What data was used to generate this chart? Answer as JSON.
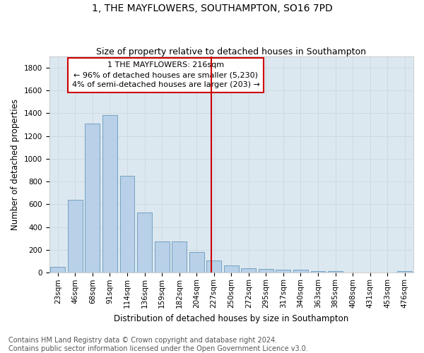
{
  "title": "1, THE MAYFLOWERS, SOUTHAMPTON, SO16 7PD",
  "subtitle": "Size of property relative to detached houses in Southampton",
  "xlabel": "Distribution of detached houses by size in Southampton",
  "ylabel": "Number of detached properties",
  "categories": [
    "23sqm",
    "46sqm",
    "68sqm",
    "91sqm",
    "114sqm",
    "136sqm",
    "159sqm",
    "182sqm",
    "204sqm",
    "227sqm",
    "250sqm",
    "272sqm",
    "295sqm",
    "317sqm",
    "340sqm",
    "363sqm",
    "385sqm",
    "408sqm",
    "431sqm",
    "453sqm",
    "476sqm"
  ],
  "values": [
    50,
    640,
    1310,
    1380,
    850,
    530,
    275,
    275,
    185,
    105,
    65,
    40,
    35,
    30,
    25,
    15,
    15,
    0,
    0,
    0,
    15
  ],
  "bar_color": "#b8d0e8",
  "bar_edge_color": "#6699bb",
  "vline_x": 8.85,
  "vline_color": "#cc0000",
  "annotation_text": "1 THE MAYFLOWERS: 216sqm\n← 96% of detached houses are smaller (5,230)\n4% of semi-detached houses are larger (203) →",
  "annotation_box_color": "#cc0000",
  "ylim": [
    0,
    1900
  ],
  "yticks": [
    0,
    200,
    400,
    600,
    800,
    1000,
    1200,
    1400,
    1600,
    1800
  ],
  "grid_color": "#d0d8e0",
  "bg_color": "#dce8f0",
  "footer_line1": "Contains HM Land Registry data © Crown copyright and database right 2024.",
  "footer_line2": "Contains public sector information licensed under the Open Government Licence v3.0.",
  "title_fontsize": 10,
  "subtitle_fontsize": 9,
  "xlabel_fontsize": 8.5,
  "ylabel_fontsize": 8.5,
  "tick_fontsize": 7.5,
  "annotation_fontsize": 8,
  "footer_fontsize": 7
}
